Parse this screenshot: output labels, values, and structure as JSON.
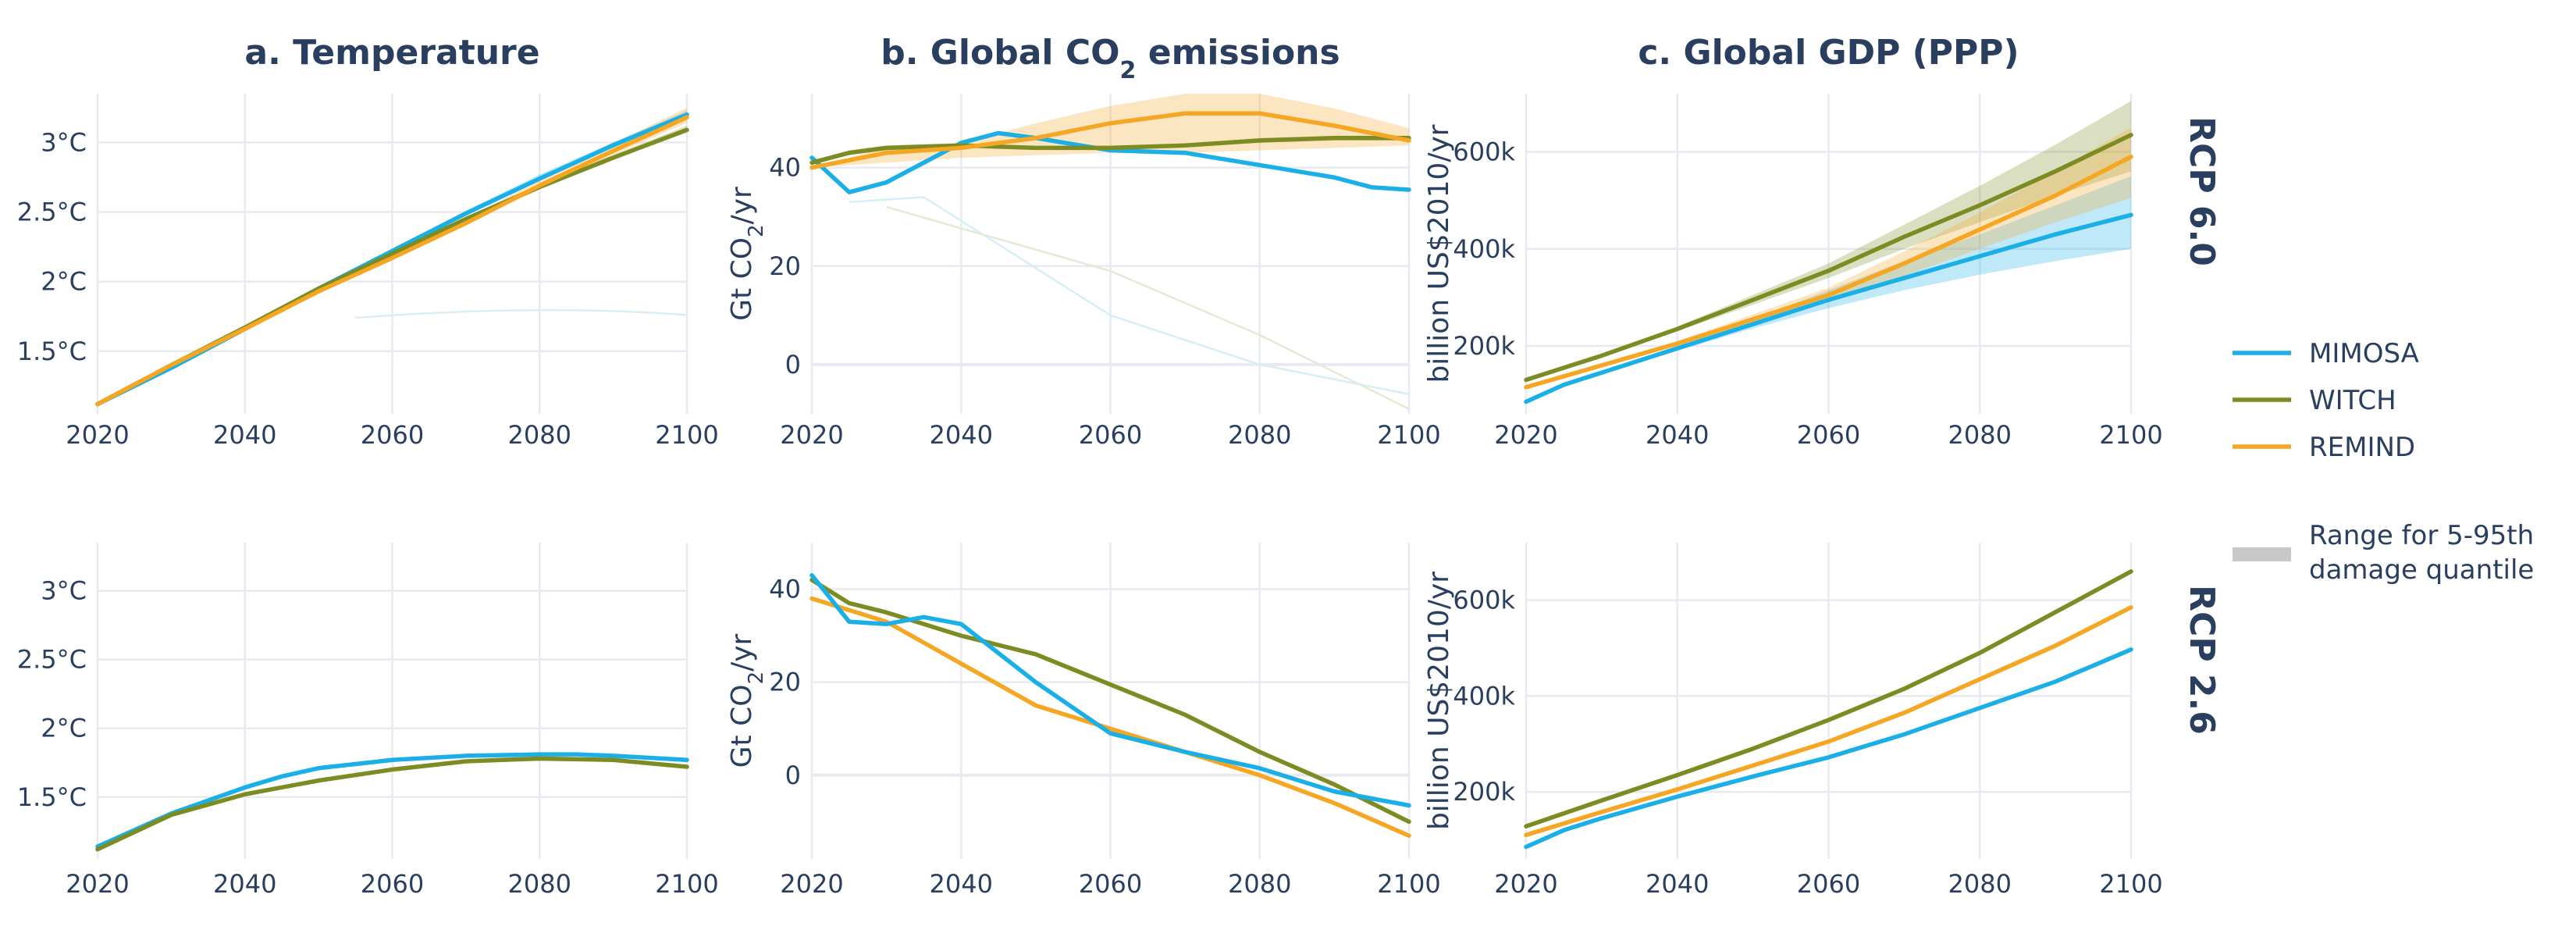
{
  "colors": {
    "MIMOSA": "#1aafe6",
    "WITCH": "#7c8c22",
    "REMIND": "#f5a623",
    "range": "#c8c8c8",
    "text": "#2a3f5f",
    "grid": "#e7eaf1"
  },
  "row_labels": [
    "RCP 6.0",
    "RCP 2.6"
  ],
  "legend": {
    "entries": [
      {
        "name": "MIMOSA",
        "icon": "line"
      },
      {
        "name": "WITCH",
        "icon": "line"
      },
      {
        "name": "REMIND",
        "icon": "line"
      },
      {
        "name": "Range for 5-95th damage quantile",
        "lines": [
          "Range for 5-95th",
          "damage quantile"
        ],
        "icon": "band"
      }
    ]
  },
  "chart_data": [
    {
      "id": "temp-rcp60",
      "type": "line",
      "row": 0,
      "col": 0,
      "title": "a. Temperature",
      "ylabel": "",
      "xlim": [
        2020,
        2100
      ],
      "ylim": [
        1.05,
        3.35
      ],
      "xticks": [
        2020,
        2040,
        2060,
        2080,
        2100
      ],
      "xticklabels": [
        "2020",
        "2040",
        "2060",
        "2080",
        "2100"
      ],
      "yticks": [
        1.5,
        2,
        2.5,
        3
      ],
      "yticklabels": [
        "1.5°C",
        "2°C",
        "2.5°C",
        "3°C"
      ],
      "series": [
        {
          "name": "MIMOSA",
          "x": [
            2020,
            2030,
            2040,
            2050,
            2060,
            2070,
            2080,
            2090,
            2100
          ],
          "y": [
            1.12,
            1.38,
            1.66,
            1.95,
            2.22,
            2.49,
            2.74,
            2.98,
            3.2
          ],
          "band": {
            "lo": [
              1.12,
              1.38,
              1.66,
              1.95,
              2.22,
              2.49,
              2.74,
              2.97,
              3.19
            ],
            "hi": [
              1.12,
              1.39,
              1.67,
              1.96,
              2.23,
              2.51,
              2.77,
              3.0,
              3.23
            ]
          }
        },
        {
          "name": "WITCH",
          "x": [
            2020,
            2030,
            2040,
            2050,
            2060,
            2070,
            2080,
            2090,
            2100
          ],
          "y": [
            1.12,
            1.4,
            1.67,
            1.95,
            2.2,
            2.45,
            2.68,
            2.89,
            3.09
          ],
          "band": {
            "lo": [
              1.12,
              1.39,
              1.66,
              1.94,
              2.19,
              2.44,
              2.67,
              2.88,
              3.07
            ],
            "hi": [
              1.12,
              1.41,
              1.68,
              1.96,
              2.21,
              2.46,
              2.7,
              2.91,
              3.12
            ]
          }
        },
        {
          "name": "REMIND",
          "x": [
            2020,
            2030,
            2040,
            2050,
            2060,
            2070,
            2080,
            2090,
            2100
          ],
          "y": [
            1.12,
            1.4,
            1.66,
            1.93,
            2.17,
            2.42,
            2.69,
            2.94,
            3.18
          ],
          "band": {
            "lo": [
              1.12,
              1.39,
              1.65,
              1.92,
              2.16,
              2.41,
              2.66,
              2.91,
              3.14
            ],
            "hi": [
              1.12,
              1.41,
              1.68,
              1.95,
              2.19,
              2.45,
              2.73,
              2.99,
              3.25
            ]
          }
        }
      ]
    },
    {
      "id": "co2-rcp60",
      "type": "line",
      "row": 0,
      "col": 1,
      "title": "b. Global CO2 emissions",
      "title_parts": [
        "b. Global CO",
        "2",
        " emissions"
      ],
      "ylabel": "Gt CO2/yr",
      "ylabel_parts": [
        "Gt CO",
        "2",
        "/yr"
      ],
      "xlim": [
        2020,
        2100
      ],
      "ylim": [
        -10,
        55
      ],
      "xticks": [
        2020,
        2040,
        2060,
        2080,
        2100
      ],
      "xticklabels": [
        "2020",
        "2040",
        "2060",
        "2080",
        "2100"
      ],
      "yticks": [
        0,
        20,
        40
      ],
      "yticklabels": [
        "0",
        "20",
        "40"
      ],
      "series": [
        {
          "name": "MIMOSA",
          "x": [
            2020,
            2025,
            2030,
            2035,
            2040,
            2045,
            2050,
            2060,
            2070,
            2080,
            2090,
            2095,
            2100
          ],
          "y": [
            42,
            35,
            37,
            41,
            45,
            47,
            46,
            43.5,
            43,
            40.5,
            38,
            36,
            35.5
          ],
          "band": {
            "lo": [
              42,
              35,
              37,
              41,
              45,
              47,
              46,
              43.5,
              43,
              40.5,
              38,
              36,
              35.5
            ],
            "hi": [
              42,
              35,
              37,
              41,
              45,
              47,
              46,
              43.5,
              43,
              40.5,
              38,
              36,
              35.5
            ]
          }
        },
        {
          "name": "WITCH",
          "x": [
            2020,
            2025,
            2030,
            2040,
            2050,
            2060,
            2070,
            2080,
            2090,
            2100
          ],
          "y": [
            41,
            43,
            44,
            44.5,
            44,
            44,
            44.5,
            45.5,
            46,
            46
          ],
          "band": {
            "lo": [
              41,
              42.5,
              43.5,
              44,
              43.8,
              43.8,
              44.2,
              45,
              45.5,
              45.5
            ],
            "hi": [
              41,
              43.5,
              44.5,
              45,
              44.3,
              44.3,
              44.8,
              46,
              46.5,
              46.5
            ]
          }
        },
        {
          "name": "REMIND",
          "x": [
            2020,
            2030,
            2040,
            2050,
            2060,
            2070,
            2080,
            2090,
            2100
          ],
          "y": [
            40,
            43,
            44,
            46,
            49,
            51,
            51,
            48.5,
            45.5
          ],
          "band": {
            "lo": [
              40,
              41,
              42,
              42.5,
              43,
              43,
              43.5,
              44,
              44.5
            ],
            "hi": [
              40,
              44,
              45,
              49,
              52.5,
              55,
              55,
              52,
              48
            ]
          }
        }
      ]
    },
    {
      "id": "gdp-rcp60",
      "type": "line",
      "row": 0,
      "col": 2,
      "title": "c. Global GDP (PPP)",
      "ylabel": "billion US$2010/yr",
      "xlim": [
        2020,
        2100
      ],
      "ylim": [
        60000,
        720000
      ],
      "xticks": [
        2020,
        2040,
        2060,
        2080,
        2100
      ],
      "xticklabels": [
        "2020",
        "2040",
        "2060",
        "2080",
        "2100"
      ],
      "yticks": [
        200000,
        400000,
        600000
      ],
      "yticklabels": [
        "200k",
        "400k",
        "600k"
      ],
      "series": [
        {
          "name": "MIMOSA",
          "x": [
            2020,
            2025,
            2030,
            2040,
            2050,
            2060,
            2070,
            2080,
            2090,
            2100
          ],
          "y": [
            85000,
            120000,
            145000,
            195000,
            245000,
            295000,
            340000,
            385000,
            430000,
            470000
          ],
          "band": {
            "lo": [
              85000,
              120000,
              143000,
              190000,
              236000,
              278000,
              315000,
              347000,
              375000,
              400000
            ],
            "hi": [
              85000,
              121000,
              148000,
              200000,
              255000,
              315000,
              375000,
              430000,
              490000,
              550000
            ]
          }
        },
        {
          "name": "WITCH",
          "x": [
            2020,
            2030,
            2040,
            2050,
            2060,
            2070,
            2080,
            2090,
            2100
          ],
          "y": [
            130000,
            180000,
            235000,
            295000,
            355000,
            425000,
            490000,
            560000,
            635000
          ],
          "band": {
            "lo": [
              130000,
              178000,
              230000,
              285000,
              340000,
              400000,
              455000,
              510000,
              560000
            ],
            "hi": [
              130000,
              182000,
              240000,
              305000,
              370000,
              450000,
              530000,
              615000,
              705000
            ]
          }
        },
        {
          "name": "REMIND",
          "x": [
            2020,
            2030,
            2040,
            2050,
            2060,
            2070,
            2080,
            2090,
            2100
          ],
          "y": [
            115000,
            160000,
            205000,
            255000,
            305000,
            370000,
            440000,
            510000,
            590000
          ],
          "band": {
            "lo": [
              115000,
              158000,
              200000,
              247000,
              290000,
              345000,
              400000,
              455000,
              505000
            ],
            "hi": [
              115000,
              162000,
              210000,
              265000,
              320000,
              395000,
              475000,
              560000,
              650000
            ]
          }
        }
      ]
    },
    {
      "id": "temp-rcp26",
      "type": "line",
      "row": 1,
      "col": 0,
      "title": "",
      "ylabel": "",
      "xlim": [
        2020,
        2100
      ],
      "ylim": [
        1.05,
        3.35
      ],
      "xticks": [
        2020,
        2040,
        2060,
        2080,
        2100
      ],
      "xticklabels": [
        "2020",
        "2040",
        "2060",
        "2080",
        "2100"
      ],
      "yticks": [
        1.5,
        2,
        2.5,
        3
      ],
      "yticklabels": [
        "1.5°C",
        "2°C",
        "2.5°C",
        "3°C"
      ],
      "series": [
        {
          "name": "MIMOSA",
          "x": [
            2020,
            2030,
            2040,
            2045,
            2050,
            2060,
            2070,
            2080,
            2085,
            2090,
            2100
          ],
          "y": [
            1.14,
            1.38,
            1.57,
            1.65,
            1.71,
            1.77,
            1.8,
            1.81,
            1.81,
            1.8,
            1.77
          ]
        },
        {
          "name": "WITCH",
          "x": [
            2020,
            2030,
            2040,
            2050,
            2060,
            2070,
            2080,
            2090,
            2100
          ],
          "y": [
            1.12,
            1.37,
            1.52,
            1.62,
            1.7,
            1.76,
            1.78,
            1.77,
            1.72
          ]
        }
      ]
    },
    {
      "id": "co2-rcp26",
      "type": "line",
      "row": 1,
      "col": 1,
      "title": "",
      "ylabel": "Gt CO2/yr",
      "ylabel_parts": [
        "Gt CO",
        "2",
        "/yr"
      ],
      "xlim": [
        2020,
        2100
      ],
      "ylim": [
        -18,
        50
      ],
      "xticks": [
        2020,
        2040,
        2060,
        2080,
        2100
      ],
      "xticklabels": [
        "2020",
        "2040",
        "2060",
        "2080",
        "2100"
      ],
      "yticks": [
        0,
        20,
        40
      ],
      "yticklabels": [
        "0",
        "20",
        "40"
      ],
      "series": [
        {
          "name": "REMIND",
          "x": [
            2020,
            2030,
            2040,
            2050,
            2060,
            2070,
            2080,
            2090,
            2100
          ],
          "y": [
            38,
            33,
            24,
            15,
            10,
            5,
            0,
            -6,
            -13
          ]
        },
        {
          "name": "WITCH",
          "x": [
            2020,
            2025,
            2030,
            2040,
            2050,
            2060,
            2070,
            2080,
            2090,
            2100
          ],
          "y": [
            42,
            37,
            35,
            30,
            26,
            19.5,
            13,
            5,
            -2,
            -10
          ]
        },
        {
          "name": "MIMOSA",
          "x": [
            2020,
            2025,
            2030,
            2035,
            2040,
            2050,
            2060,
            2070,
            2080,
            2090,
            2100
          ],
          "y": [
            43,
            33,
            32.5,
            34,
            32.5,
            20,
            9,
            5,
            1.5,
            -3.5,
            -6.5
          ]
        }
      ]
    },
    {
      "id": "gdp-rcp26",
      "type": "line",
      "row": 1,
      "col": 2,
      "title": "",
      "ylabel": "billion US$2010/yr",
      "xlim": [
        2020,
        2100
      ],
      "ylim": [
        60000,
        720000
      ],
      "xticks": [
        2020,
        2040,
        2060,
        2080,
        2100
      ],
      "xticklabels": [
        "2020",
        "2040",
        "2060",
        "2080",
        "2100"
      ],
      "yticks": [
        200000,
        400000,
        600000
      ],
      "yticklabels": [
        "200k",
        "400k",
        "600k"
      ],
      "series": [
        {
          "name": "MIMOSA",
          "x": [
            2020,
            2025,
            2030,
            2040,
            2050,
            2060,
            2070,
            2080,
            2090,
            2100
          ],
          "y": [
            85000,
            120000,
            145000,
            190000,
            232000,
            272000,
            320000,
            375000,
            430000,
            497000
          ]
        },
        {
          "name": "WITCH",
          "x": [
            2020,
            2030,
            2040,
            2050,
            2060,
            2070,
            2080,
            2090,
            2100
          ],
          "y": [
            128000,
            182000,
            235000,
            290000,
            350000,
            415000,
            490000,
            575000,
            660000
          ]
        },
        {
          "name": "REMIND",
          "x": [
            2020,
            2030,
            2040,
            2050,
            2060,
            2070,
            2080,
            2090,
            2100
          ],
          "y": [
            110000,
            158000,
            205000,
            255000,
            305000,
            365000,
            435000,
            505000,
            585000
          ]
        }
      ]
    }
  ]
}
